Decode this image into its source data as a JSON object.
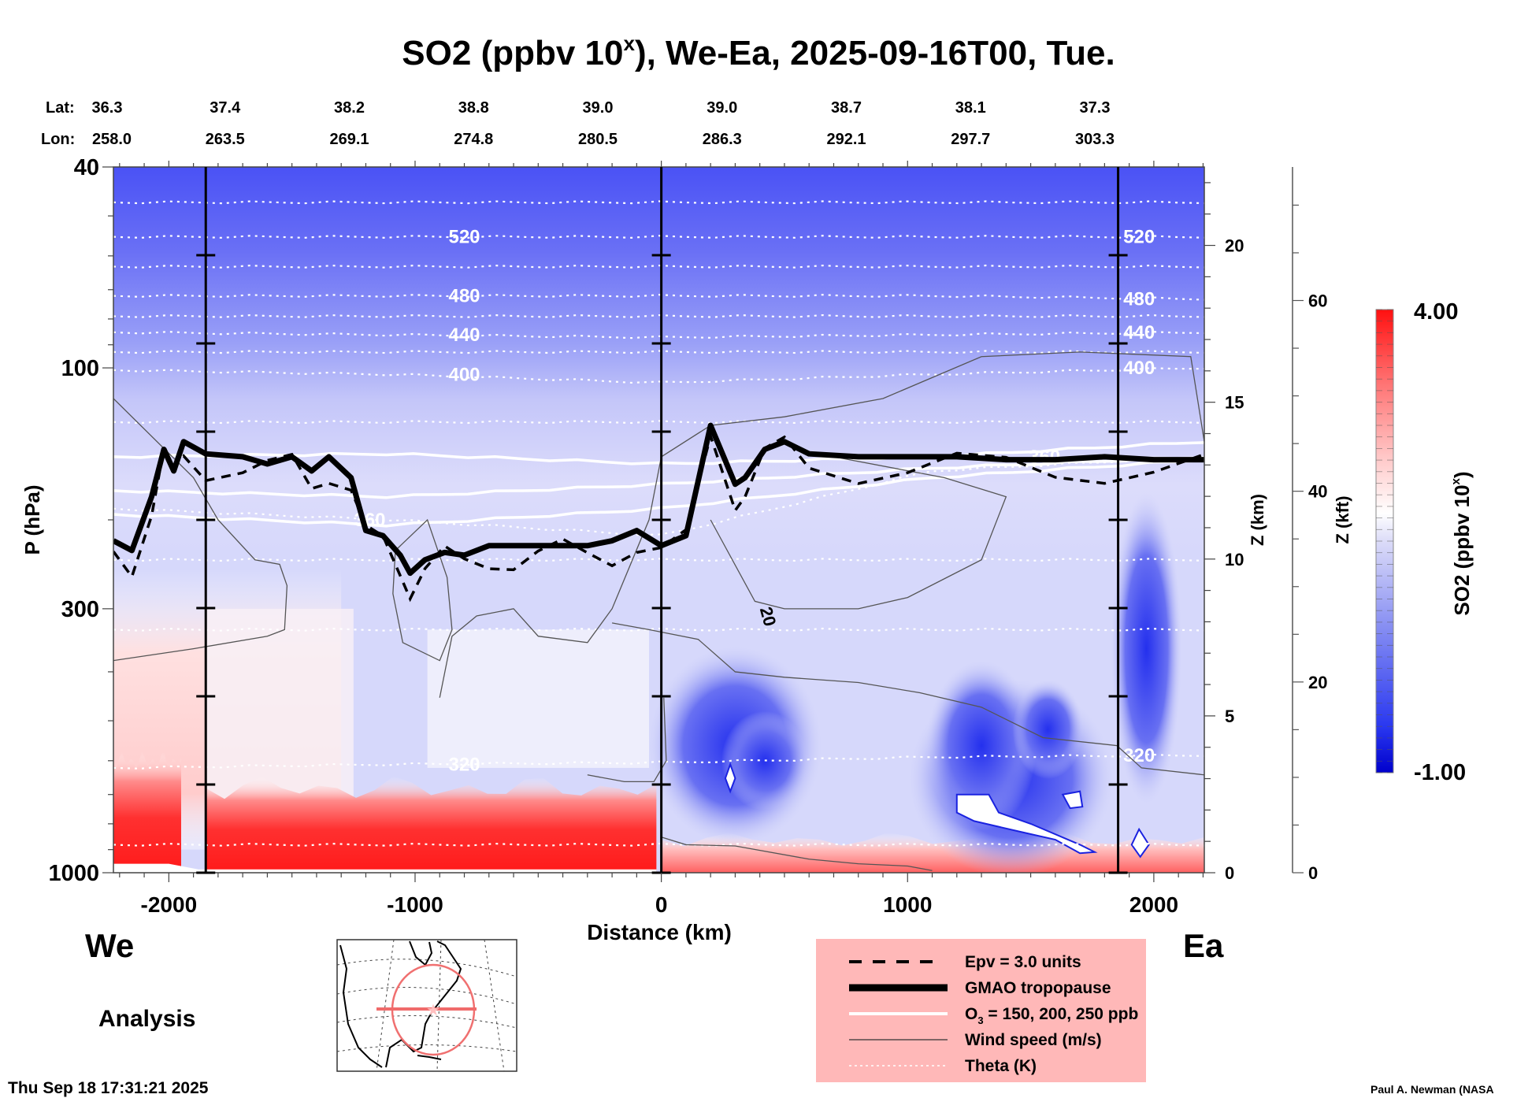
{
  "chart_data": {
    "type": "heatmap",
    "title": "SO2 (ppbv 10^x), We-Ea, 2025-09-16T00, Tue.",
    "title_main": "SO2 (ppbv 10",
    "title_sup": "x",
    "title_rest": "), We-Ea, 2025-09-16T00, Tue.",
    "xlabel": "Distance (km)",
    "ylabel": "P (hPa)",
    "xlim": [
      -2225,
      2205
    ],
    "ylim": [
      1000,
      40
    ],
    "y_scale": "log",
    "x_ticks": [
      -2000,
      -1000,
      0,
      1000,
      2000
    ],
    "x_tick_labels": [
      "-2000",
      "-1000",
      "0",
      "1000",
      "2000"
    ],
    "y_ticks": [
      40,
      100,
      300,
      1000
    ],
    "y_tick_labels": [
      "40",
      "100",
      "300",
      "1000"
    ],
    "z_km_axis": {
      "label": "Z (km)",
      "ticks": [
        0,
        5,
        10,
        15,
        20
      ],
      "range": [
        0,
        22.5
      ]
    },
    "z_kft_axis": {
      "label": "Z (kft)",
      "ticks": [
        0,
        20,
        40,
        60
      ],
      "range": [
        0,
        74
      ]
    },
    "lat_label": "Lat:",
    "lon_label": "Lon:",
    "track_points": [
      {
        "lat": "36.3",
        "lon": "258.0"
      },
      {
        "lat": "37.4",
        "lon": "263.5"
      },
      {
        "lat": "38.2",
        "lon": "269.1"
      },
      {
        "lat": "38.8",
        "lon": "274.8"
      },
      {
        "lat": "39.0",
        "lon": "280.5"
      },
      {
        "lat": "39.0",
        "lon": "286.3"
      },
      {
        "lat": "38.7",
        "lon": "292.1"
      },
      {
        "lat": "38.1",
        "lon": "297.7"
      },
      {
        "lat": "37.3",
        "lon": "303.3"
      }
    ],
    "vertical_markers_km": [
      -1850,
      0,
      1855
    ],
    "colorbar": {
      "label": "SO2 (ppbv 10^x)",
      "label_main": "SO2 (ppbv 10",
      "label_sup": "x",
      "label_rest": ")",
      "min": -1.0,
      "max": 4.0,
      "min_label": "-1.00",
      "max_label": "4.00",
      "colors": [
        "#0000cc",
        "#ffffff",
        "#ff0000"
      ],
      "white_at": 1.7
    },
    "theta_contours": [
      {
        "value": 520,
        "label": "520",
        "p": [
          55,
          55,
          55,
          55,
          55
        ]
      },
      {
        "value": 480,
        "label": "480",
        "p": [
          72,
          72,
          72,
          72,
          73
        ]
      },
      {
        "value": 440,
        "label": "440",
        "p": [
          85,
          86,
          87,
          86,
          85
        ]
      },
      {
        "value": 400,
        "label": "400",
        "p": [
          101,
          103,
          107,
          103,
          100
        ]
      },
      {
        "value": 360,
        "label": "360",
        "p": [
          190,
          200,
          215,
          160,
          150
        ]
      },
      {
        "value": 320,
        "label": "320",
        "p": [
          620,
          610,
          605,
          590,
          585
        ]
      }
    ],
    "theta_extra_lines_p": [
      47,
      63,
      79,
      93,
      128,
      240,
      330,
      880
    ],
    "tropopause": {
      "x": [
        -2225,
        -2150,
        -2070,
        -2020,
        -1980,
        -1940,
        -1850,
        -1700,
        -1600,
        -1500,
        -1420,
        -1350,
        -1260,
        -1200,
        -1130,
        -1060,
        -1020,
        -960,
        -880,
        -800,
        -700,
        -600,
        -500,
        -400,
        -300,
        -200,
        -100,
        0,
        100,
        200,
        300,
        340,
        420,
        500,
        600,
        800,
        1000,
        1200,
        1400,
        1600,
        1800,
        2000,
        2205
      ],
      "p": [
        220,
        230,
        180,
        145,
        160,
        140,
        148,
        150,
        155,
        150,
        160,
        150,
        165,
        210,
        215,
        235,
        255,
        240,
        232,
        235,
        225,
        225,
        225,
        225,
        225,
        220,
        210,
        225,
        215,
        130,
        170,
        165,
        145,
        140,
        148,
        150,
        150,
        150,
        152,
        152,
        150,
        152,
        152
      ]
    },
    "so2_regions": [
      {
        "name": "low-trop-red-west",
        "x": [
          -1850,
          -20
        ],
        "p_top": 660,
        "value": 3.6
      },
      {
        "name": "low-trop-red-farwest",
        "x": [
          -2225,
          -1950
        ],
        "p_top": 600,
        "value": 2.9
      },
      {
        "name": "red-boundary-east",
        "x": [
          0,
          2205
        ],
        "p_top": 900,
        "value": 2.6
      },
      {
        "name": "pink-upper-trop-west",
        "x": [
          -2225,
          -1850
        ],
        "p_top": 250,
        "value": 2.1
      },
      {
        "name": "blue-lower-east",
        "x": [
          1100,
          1850
        ],
        "p_top": 480,
        "value": -0.4
      },
      {
        "name": "blue-lower-mid",
        "x": [
          50,
          600
        ],
        "p_top": 520,
        "value": 0.1
      },
      {
        "name": "stratosphere-gradient",
        "x": [
          -2225,
          2205
        ],
        "p_top": 40,
        "value": 0.0
      }
    ],
    "wind_speed_label": "20",
    "side_labels": {
      "west": "We",
      "east": "Ea"
    }
  },
  "legend": {
    "items": [
      {
        "label": "Epv = 3.0 units",
        "style": "dashed"
      },
      {
        "label": "GMAO tropopause",
        "style": "thick"
      },
      {
        "label_main": "O",
        "label_sub": "3",
        "label_rest": " = 150, 200, 250 ppb",
        "style": "white"
      },
      {
        "label": "Wind speed (m/s)",
        "style": "thin"
      },
      {
        "label": "Theta (K)",
        "style": "dotted"
      }
    ],
    "background": "#ffb8b8"
  },
  "footer": {
    "mode_label": "Analysis",
    "timestamp": "Thu Sep 18 17:31:21 2025",
    "credit": "Paul A. Newman (NASA"
  }
}
